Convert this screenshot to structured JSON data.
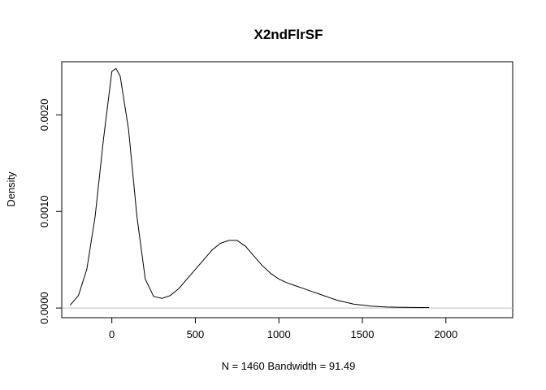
{
  "chart_data": {
    "type": "line",
    "title": "X2ndFlrSF",
    "xlabel": "N = 1460   Bandwidth = 91.49",
    "ylabel": "Density",
    "xlim": [
      -300,
      2400
    ],
    "ylim": [
      -0.0001,
      0.00255
    ],
    "x_ticks": [
      0,
      500,
      1000,
      1500,
      2000
    ],
    "x_tick_labels": [
      "0",
      "500",
      "1000",
      "1500",
      "2000"
    ],
    "y_ticks": [
      0,
      0.001,
      0.002
    ],
    "y_tick_labels": [
      "0.0000",
      "0.0010",
      "0.0020"
    ],
    "grid": false,
    "baseline": 0,
    "series": [
      {
        "x": [
          -250,
          -200,
          -150,
          -100,
          -50,
          0,
          25,
          50,
          100,
          150,
          200,
          250,
          300,
          350,
          400,
          450,
          500,
          550,
          600,
          650,
          700,
          750,
          800,
          850,
          900,
          950,
          1000,
          1050,
          1100,
          1150,
          1200,
          1250,
          1300,
          1350,
          1400,
          1450,
          1500,
          1550,
          1600,
          1650,
          1700,
          1750,
          1800,
          1850,
          1900
        ],
        "y": [
          3e-05,
          0.00013,
          0.0004,
          0.00095,
          0.00175,
          0.00245,
          0.00248,
          0.0024,
          0.00185,
          0.00095,
          0.0003,
          0.00012,
          0.0001,
          0.00013,
          0.0002,
          0.0003,
          0.0004,
          0.0005,
          0.0006,
          0.00067,
          0.0007,
          0.0007,
          0.00064,
          0.00054,
          0.00044,
          0.00036,
          0.0003,
          0.00026,
          0.00023,
          0.0002,
          0.00017,
          0.00014,
          0.00011,
          8e-05,
          6e-05,
          4e-05,
          3e-05,
          2e-05,
          1.5e-05,
          1e-05,
          8e-06,
          7e-06,
          6e-06,
          5e-06,
          5e-06
        ]
      }
    ]
  }
}
